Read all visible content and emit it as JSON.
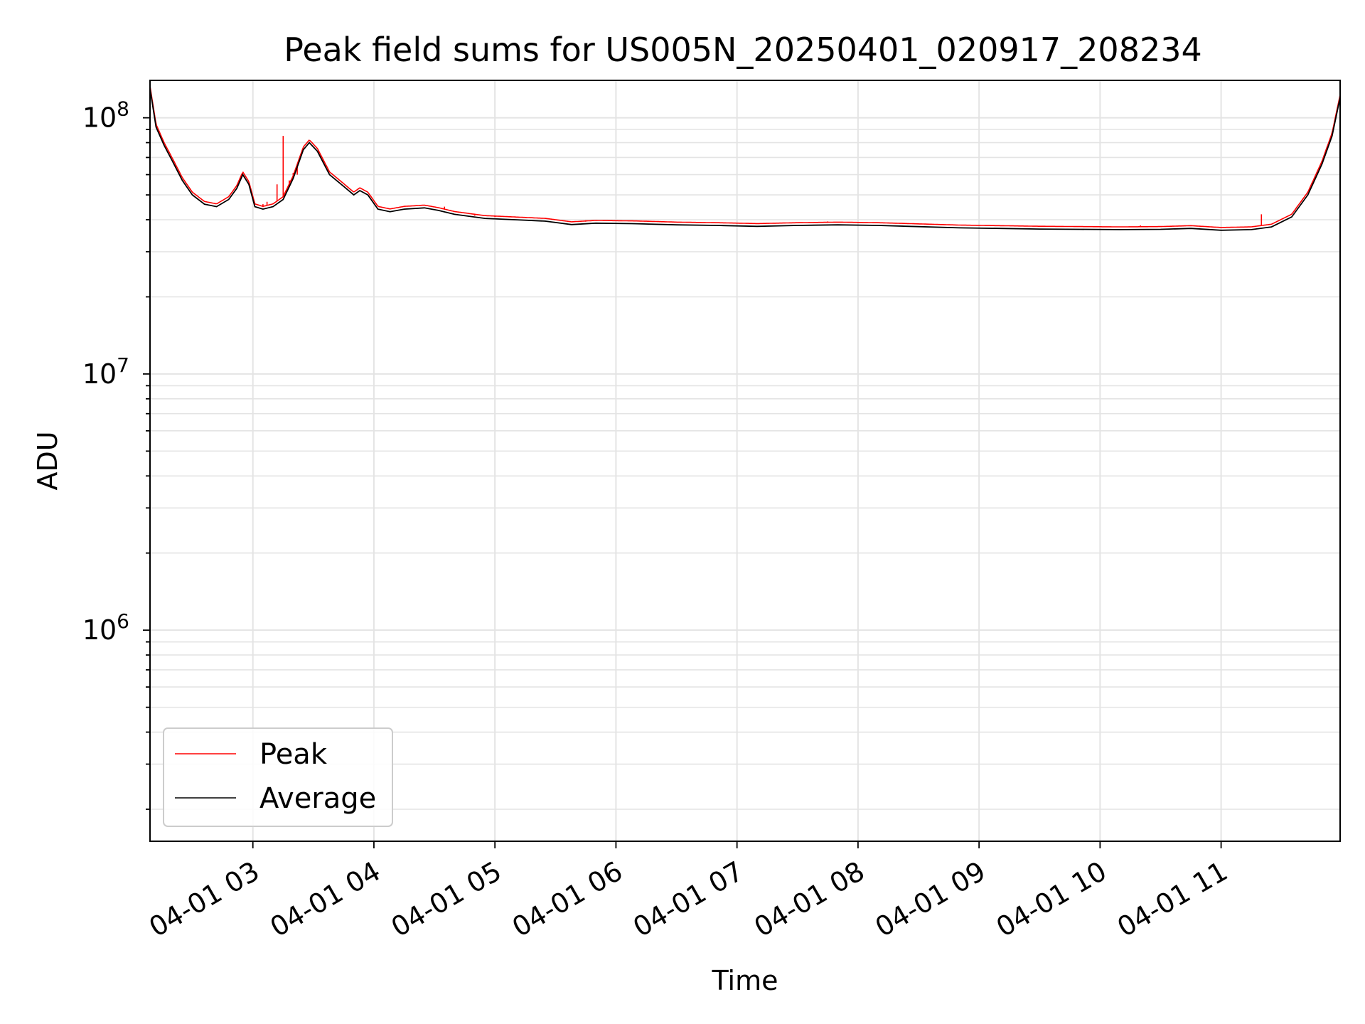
{
  "chart_data": {
    "type": "line",
    "title": "Peak field sums for US005N_20250401_020917_208234",
    "xlabel": "Time",
    "ylabel": "ADU",
    "x_axis": {
      "kind": "time",
      "range": [
        "2025-04-01 02:09",
        "2025-04-01 11:59"
      ],
      "tick_values": [
        "2025-04-01 03:00",
        "2025-04-01 04:00",
        "2025-04-01 05:00",
        "2025-04-01 06:00",
        "2025-04-01 07:00",
        "2025-04-01 08:00",
        "2025-04-01 09:00",
        "2025-04-01 10:00",
        "2025-04-01 11:00"
      ],
      "tick_labels": [
        "04-01 03",
        "04-01 04",
        "04-01 05",
        "04-01 06",
        "04-01 07",
        "04-01 08",
        "04-01 09",
        "04-01 10",
        "04-01 11"
      ],
      "tick_label_rotation_deg": 30
    },
    "y_axis": {
      "scale": "log",
      "range": [
        150000,
        140000000
      ],
      "tick_labels": [
        {
          "base": "10",
          "exp": "6",
          "value": 1000000
        },
        {
          "base": "10",
          "exp": "7",
          "value": 10000000
        },
        {
          "base": "10",
          "exp": "8",
          "value": 100000000
        }
      ]
    },
    "grid": true,
    "legend": {
      "placement": "lower-left",
      "entries": [
        {
          "label": "Peak",
          "color": "#ff0000"
        },
        {
          "label": "Average",
          "color": "#000000"
        }
      ]
    },
    "series": [
      {
        "name": "Average",
        "color": "#000000",
        "points": [
          [
            "2025-04-01 02:09",
            130000000
          ],
          [
            "2025-04-01 02:12",
            92000000
          ],
          [
            "2025-04-01 02:16",
            78000000
          ],
          [
            "2025-04-01 02:20",
            68000000
          ],
          [
            "2025-04-01 02:25",
            57000000
          ],
          [
            "2025-04-01 02:30",
            50000000
          ],
          [
            "2025-04-01 02:36",
            46000000
          ],
          [
            "2025-04-01 02:42",
            45000000
          ],
          [
            "2025-04-01 02:48",
            48000000
          ],
          [
            "2025-04-01 02:52",
            53000000
          ],
          [
            "2025-04-01 02:55",
            60000000
          ],
          [
            "2025-04-01 02:58",
            55000000
          ],
          [
            "2025-04-01 03:01",
            45000000
          ],
          [
            "2025-04-01 03:05",
            44000000
          ],
          [
            "2025-04-01 03:10",
            45000000
          ],
          [
            "2025-04-01 03:15",
            48000000
          ],
          [
            "2025-04-01 03:20",
            58000000
          ],
          [
            "2025-04-01 03:25",
            75000000
          ],
          [
            "2025-04-01 03:28",
            80000000
          ],
          [
            "2025-04-01 03:32",
            74000000
          ],
          [
            "2025-04-01 03:38",
            60000000
          ],
          [
            "2025-04-01 03:45",
            54000000
          ],
          [
            "2025-04-01 03:50",
            50000000
          ],
          [
            "2025-04-01 03:53",
            52000000
          ],
          [
            "2025-04-01 03:57",
            50000000
          ],
          [
            "2025-04-01 04:02",
            44000000
          ],
          [
            "2025-04-01 04:08",
            43000000
          ],
          [
            "2025-04-01 04:15",
            44000000
          ],
          [
            "2025-04-01 04:25",
            44500000
          ],
          [
            "2025-04-01 04:32",
            43500000
          ],
          [
            "2025-04-01 04:40",
            42000000
          ],
          [
            "2025-04-01 04:55",
            40500000
          ],
          [
            "2025-04-01 05:10",
            40000000
          ],
          [
            "2025-04-01 05:25",
            39500000
          ],
          [
            "2025-04-01 05:38",
            38300000
          ],
          [
            "2025-04-01 05:50",
            38800000
          ],
          [
            "2025-04-01 06:10",
            38600000
          ],
          [
            "2025-04-01 06:30",
            38200000
          ],
          [
            "2025-04-01 06:50",
            38000000
          ],
          [
            "2025-04-01 07:10",
            37700000
          ],
          [
            "2025-04-01 07:30",
            38000000
          ],
          [
            "2025-04-01 07:50",
            38200000
          ],
          [
            "2025-04-01 08:10",
            38000000
          ],
          [
            "2025-04-01 08:30",
            37600000
          ],
          [
            "2025-04-01 08:50",
            37200000
          ],
          [
            "2025-04-01 09:10",
            37000000
          ],
          [
            "2025-04-01 09:30",
            36800000
          ],
          [
            "2025-04-01 09:50",
            36700000
          ],
          [
            "2025-04-01 10:10",
            36600000
          ],
          [
            "2025-04-01 10:30",
            36700000
          ],
          [
            "2025-04-01 10:45",
            37000000
          ],
          [
            "2025-04-01 11:00",
            36400000
          ],
          [
            "2025-04-01 11:15",
            36600000
          ],
          [
            "2025-04-01 11:25",
            37500000
          ],
          [
            "2025-04-01 11:35",
            41000000
          ],
          [
            "2025-04-01 11:43",
            50000000
          ],
          [
            "2025-04-01 11:50",
            66000000
          ],
          [
            "2025-04-01 11:55",
            85000000
          ],
          [
            "2025-04-01 11:59",
            120000000
          ]
        ]
      },
      {
        "name": "Peak",
        "color": "#ff0000",
        "follows": "Average",
        "offset_factor": 1.025,
        "spikes": [
          [
            "2025-04-01 02:09",
            140000000
          ],
          [
            "2025-04-01 03:05",
            46000000
          ],
          [
            "2025-04-01 03:07",
            47000000
          ],
          [
            "2025-04-01 03:12",
            55000000
          ],
          [
            "2025-04-01 03:15",
            85000000
          ],
          [
            "2025-04-01 03:18",
            57000000
          ],
          [
            "2025-04-01 03:20",
            61000000
          ],
          [
            "2025-04-01 03:22",
            60000000
          ],
          [
            "2025-04-01 04:35",
            45000000
          ],
          [
            "2025-04-01 04:50",
            41500000
          ],
          [
            "2025-04-01 05:00",
            41000000
          ],
          [
            "2025-04-01 05:10",
            40800000
          ],
          [
            "2025-04-01 05:20",
            40500000
          ],
          [
            "2025-04-01 05:45",
            39800000
          ],
          [
            "2025-04-01 06:05",
            39500000
          ],
          [
            "2025-04-01 06:30",
            39200000
          ],
          [
            "2025-04-01 07:00",
            38900000
          ],
          [
            "2025-04-01 07:45",
            39400000
          ],
          [
            "2025-04-01 08:20",
            38800000
          ],
          [
            "2025-04-01 09:20",
            38000000
          ],
          [
            "2025-04-01 10:20",
            38000000
          ],
          [
            "2025-04-01 11:20",
            42000000
          ]
        ]
      }
    ]
  }
}
